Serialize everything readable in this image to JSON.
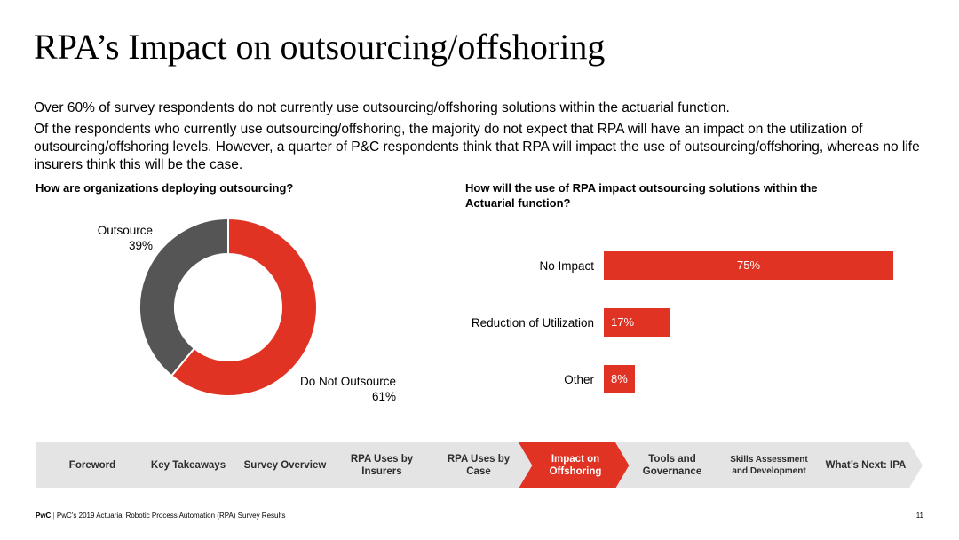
{
  "title": "RPA’s Impact on outsourcing/offshoring",
  "paragraphs": [
    "Over 60% of survey respondents do not currently use outsourcing/offshoring solutions within the actuarial function.",
    "Of the respondents who currently use outsourcing/offshoring, the majority do not expect that RPA will have an impact on the utilization of outsourcing/offshoring levels. However, a quarter of P&C respondents think that RPA will impact the use of outsourcing/offshoring, whereas no life insurers think this will be the case."
  ],
  "colors": {
    "accent": "#e03323",
    "dark": "#555555",
    "nav_bg": "#e4e4e4"
  },
  "chart_data": [
    {
      "type": "pie",
      "title": "How are organizations deploying outsourcing?",
      "slices": [
        {
          "name": "Do Not Outsource",
          "value": 61,
          "label": "61%",
          "color": "#e03323"
        },
        {
          "name": "Outsource",
          "value": 39,
          "label": "39%",
          "color": "#555555"
        }
      ]
    },
    {
      "type": "bar",
      "title": "How will the use of RPA impact outsourcing solutions within the Actuarial function?",
      "categories": [
        "No Impact",
        "Reduction of Utilization",
        "Other"
      ],
      "values": [
        75,
        17,
        8
      ],
      "labels": [
        "75%",
        "17%",
        "8%"
      ],
      "color": "#e03323"
    }
  ],
  "nav": {
    "items": [
      {
        "label": "Foreword",
        "active": false
      },
      {
        "label": "Key Takeaways",
        "active": false
      },
      {
        "label": "Survey Overview",
        "active": false
      },
      {
        "label": "RPA Uses by Insurers",
        "active": false
      },
      {
        "label": "RPA Uses by Case",
        "active": false
      },
      {
        "label": "Impact on Offshoring",
        "active": true
      },
      {
        "label": "Tools and Governance",
        "active": false
      },
      {
        "label": "Skills Assessment and Development",
        "active": false
      },
      {
        "label": "What’s Next: IPA",
        "active": false
      }
    ]
  },
  "footer": {
    "brand": "PwC",
    "separator": "|",
    "text": "PwC’s 2019 Actuarial Robotic Process Automation (RPA) Survey Results",
    "page_number": "11"
  }
}
